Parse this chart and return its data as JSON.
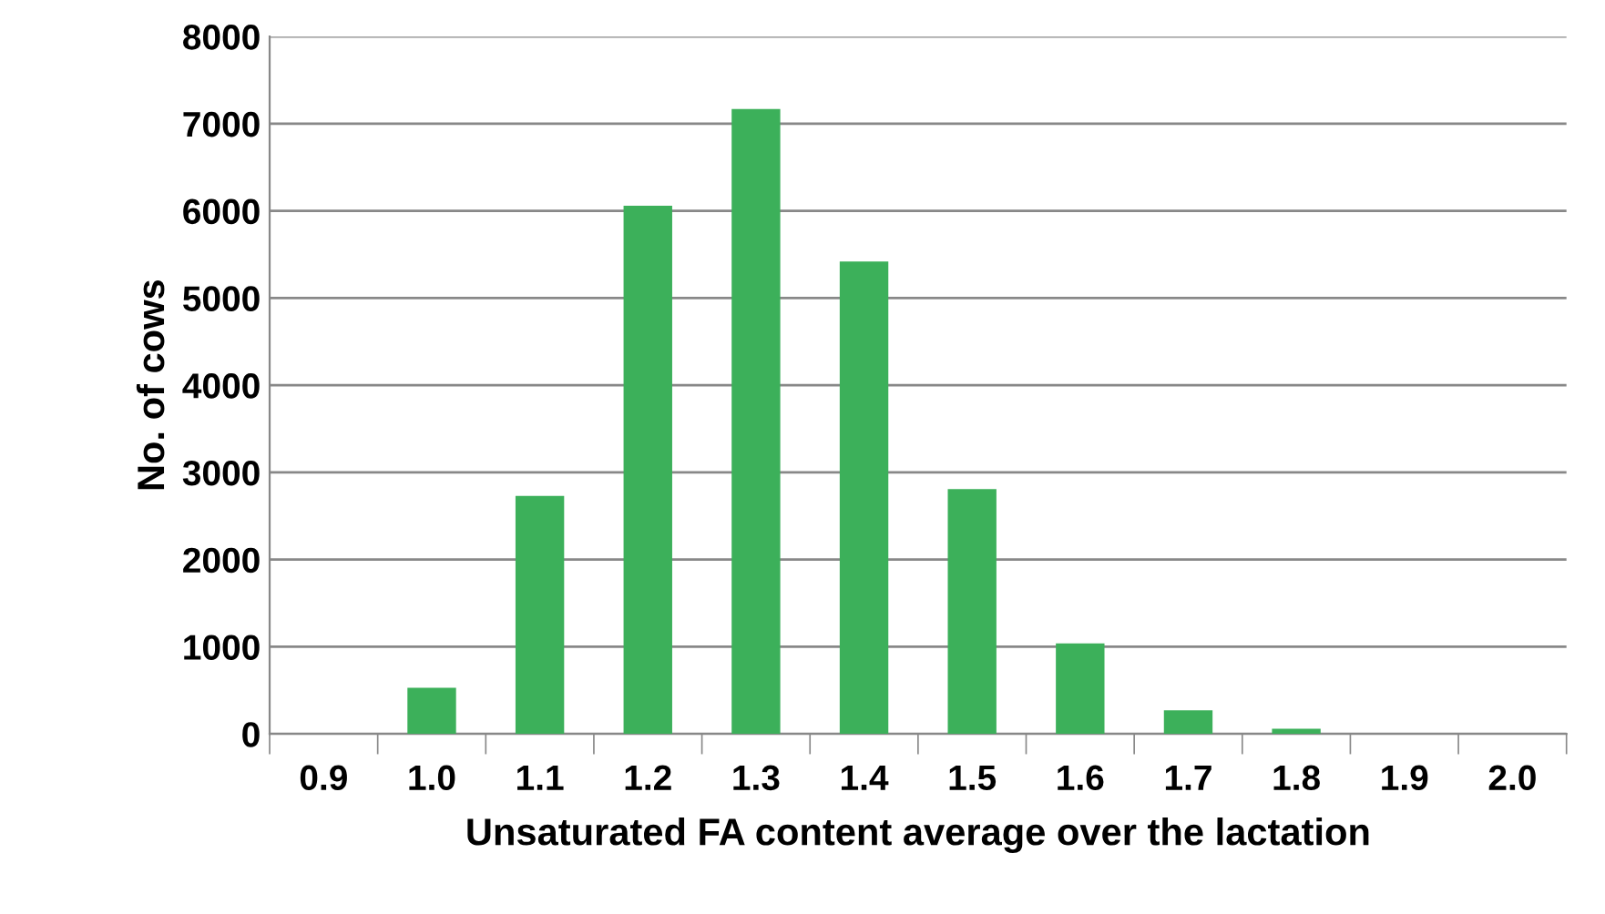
{
  "chart_data": {
    "type": "bar",
    "xlabel": "Unsaturated FA content average over the lactation",
    "ylabel": "No. of cows",
    "categories": [
      "0.9",
      "1.0",
      "1.1",
      "1.2",
      "1.3",
      "1.4",
      "1.5",
      "1.6",
      "1.7",
      "1.8",
      "1.9",
      "2.0"
    ],
    "values": [
      0,
      530,
      2730,
      6060,
      7170,
      5420,
      2810,
      1040,
      270,
      60,
      0,
      0
    ],
    "color": "#3cb05a",
    "ylim": [
      0,
      8000
    ],
    "yticks": [
      0,
      1000,
      2000,
      3000,
      4000,
      5000,
      6000,
      7000,
      8000
    ],
    "grid": "y",
    "legend": false
  }
}
